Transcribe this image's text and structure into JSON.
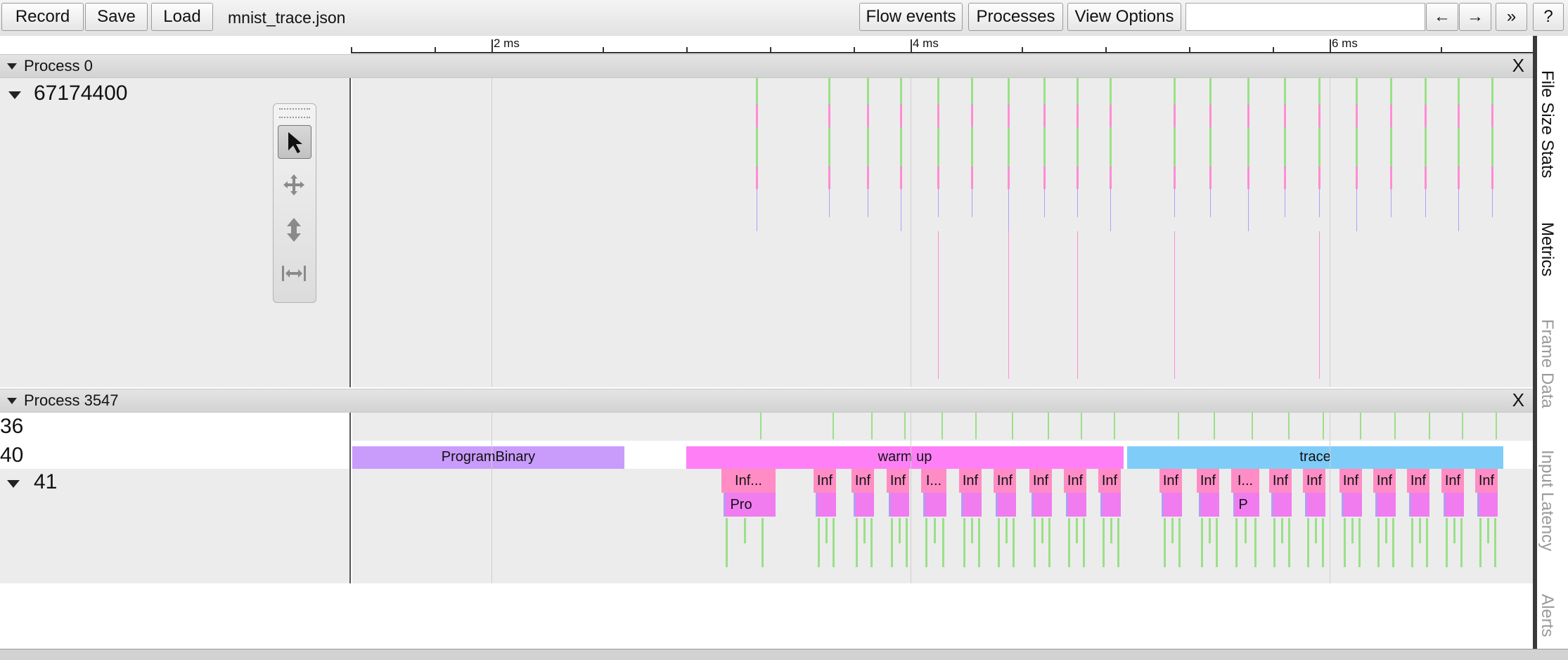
{
  "toolbar": {
    "record_label": "Record",
    "save_label": "Save",
    "load_label": "Load",
    "filename": "mnist_trace.json",
    "flow_events_label": "Flow events",
    "processes_label": "Processes",
    "view_options_label": "View Options",
    "search_value": "",
    "prev_label": "←",
    "next_label": "→",
    "expand_label": "»",
    "help_label": "?"
  },
  "ruler": {
    "labels": [
      "2 ms",
      "4 ms",
      "6 ms"
    ]
  },
  "process0": {
    "label": "Process 0",
    "close_label": "X",
    "thread_label": "67174400"
  },
  "process1": {
    "label": "Process 3547",
    "close_label": "X",
    "thread36_label": "36",
    "thread40_label": "40",
    "thread41_label": "41",
    "program_binary_label": "ProgramBinary",
    "warm_up_label": "warm up",
    "trace_label": "trace",
    "inf_labels": [
      "Inf...",
      "Inf",
      "Inf",
      "Inf",
      "I...",
      "Inf",
      "Inf",
      "Inf",
      "Inf",
      "Inf",
      "Inf",
      "Inf",
      "I...",
      "Inf",
      "Inf",
      "Inf",
      "Inf",
      "Inf",
      "Inf",
      "Inf"
    ],
    "sub_labels": [
      "Pro",
      "P"
    ]
  },
  "sidebar": {
    "tabs": [
      "File Size Stats",
      "Metrics",
      "Frame Data",
      "Input Latency",
      "Alerts"
    ]
  },
  "colors": {
    "program_binary": "#c99bfb",
    "warm_up": "#ff80f6",
    "trace": "#80ccf9",
    "inf_slice": "#ff8cc4",
    "sub_slice": "#f07cf0",
    "spike_green": "#9bdf88",
    "spike_pink": "#ff8cd4",
    "spike_purple": "#b49cf4"
  }
}
